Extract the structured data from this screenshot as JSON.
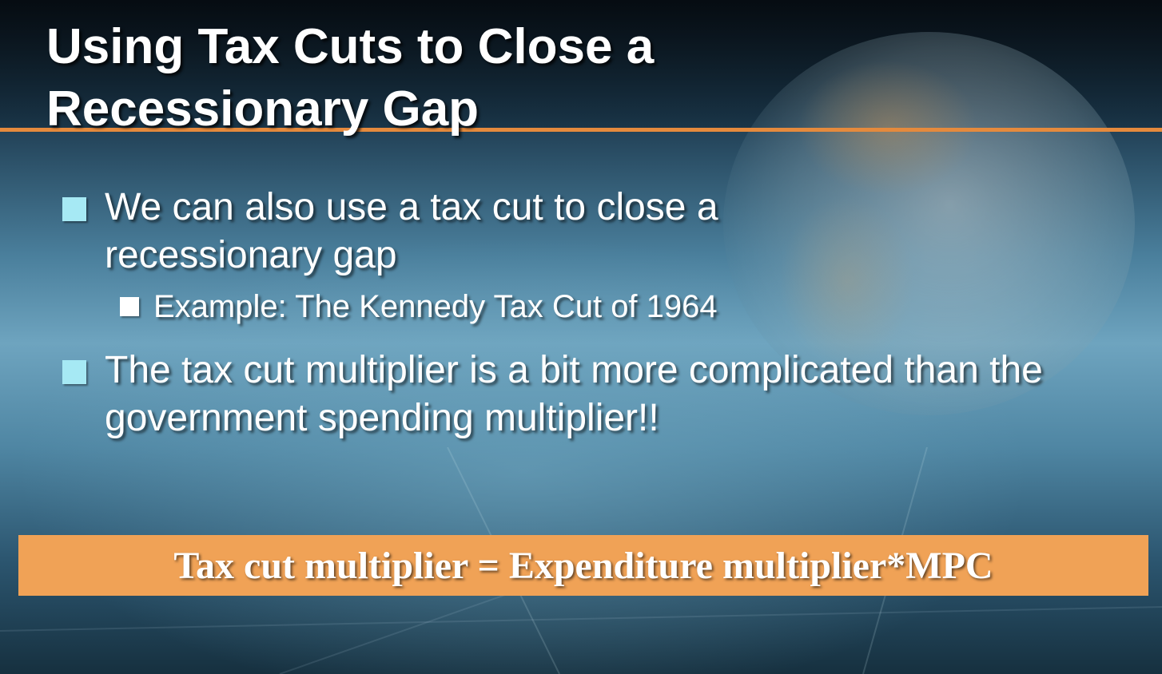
{
  "slide": {
    "title": "Using Tax Cuts to Close a Recessionary Gap",
    "bullets": [
      {
        "text": "We can also use a tax cut to close a recessionary gap"
      },
      {
        "text": "The tax cut multiplier is a bit more complicated than the government spending multiplier!!"
      }
    ],
    "sub_bullet": {
      "text": "Example: The Kennedy Tax Cut of 1964"
    },
    "formula": "Tax cut multiplier = Expenditure multiplier*MPC"
  },
  "colors": {
    "accent_rule": "#e58a3d",
    "bullet_marker": "#a6e9f4",
    "formula_box": "#f0a256",
    "text": "#ffffff"
  },
  "icons": {
    "background": "globe-graphic",
    "bullet": "square-bullet-icon"
  }
}
